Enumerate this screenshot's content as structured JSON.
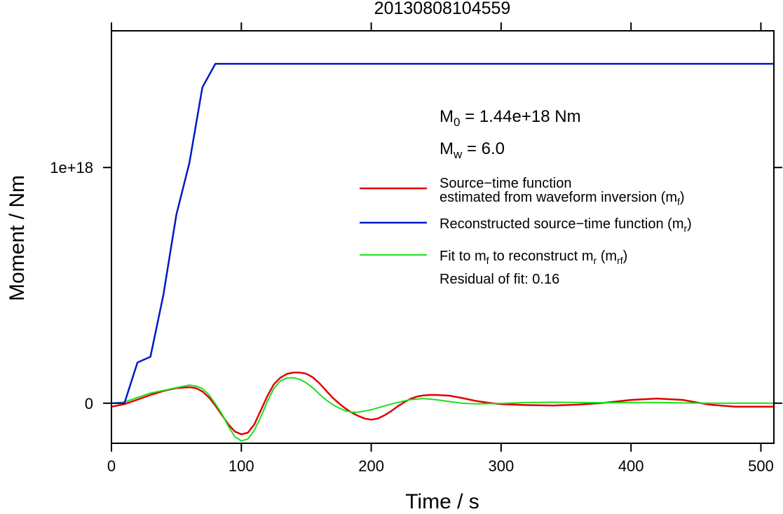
{
  "chart_data": {
    "type": "line",
    "title": "20130808104559",
    "xlabel": "Time / s",
    "ylabel": "Moment / Nm",
    "xlim": [
      0,
      510
    ],
    "ylim": [
      -1.7e+17,
      1.58e+18
    ],
    "xticks": [
      0,
      100,
      200,
      300,
      400,
      500
    ],
    "xtick_labels": [
      "0",
      "100",
      "200",
      "300",
      "400",
      "500"
    ],
    "yticks": [
      0,
      1e+18
    ],
    "ytick_labels": [
      "0",
      "1e+18"
    ],
    "grid": false,
    "legend_position": "right",
    "annotations": {
      "m0": {
        "symbol": "M",
        "sub": "0",
        "text": " = 1.44e+18 Nm"
      },
      "mw": {
        "symbol": "M",
        "sub": "w",
        "text": " = 6.0"
      },
      "residual": "Residual of fit: 0.16"
    },
    "series": [
      {
        "key": "mf",
        "legend_lines": [
          "Source−time function",
          "estimated from waveform inversion (m",
          "f",
          ")"
        ],
        "color": "#e00000",
        "width": 2.5,
        "x": [
          0,
          10,
          20,
          30,
          40,
          50,
          60,
          65,
          70,
          75,
          80,
          85,
          90,
          95,
          100,
          105,
          110,
          115,
          120,
          125,
          130,
          135,
          140,
          145,
          150,
          155,
          160,
          165,
          170,
          175,
          180,
          185,
          190,
          195,
          200,
          205,
          210,
          215,
          220,
          225,
          230,
          235,
          240,
          245,
          250,
          260,
          270,
          280,
          290,
          300,
          320,
          340,
          360,
          380,
          400,
          420,
          440,
          460,
          480,
          500,
          510
        ],
        "y": [
          -1.5e+16,
          -4000000000000000.0,
          1.5e+16,
          3.5e+16,
          5.2e+16,
          6.4e+16,
          6.8e+16,
          6.4e+16,
          5e+16,
          2.5e+16,
          -1e+16,
          -5e+16,
          -9e+16,
          -1.2e+17,
          -1.32e+17,
          -1.25e+17,
          -9e+16,
          -3e+16,
          3e+16,
          8e+16,
          1.08e+17,
          1.24e+17,
          1.3e+17,
          1.3e+17,
          1.25e+17,
          1.1e+17,
          8.5e+16,
          5.5e+16,
          2.5e+16,
          0,
          -2.2e+16,
          -4e+16,
          -5.4e+16,
          -6.5e+16,
          -7e+16,
          -6.5e+16,
          -5.2e+16,
          -3.5e+16,
          -1.5e+16,
          3000000000000000.0,
          1.8e+16,
          2.8e+16,
          3.3e+16,
          3.5e+16,
          3.5e+16,
          3.2e+16,
          2.2e+16,
          1e+16,
          2000000000000000.0,
          -4000000000000000.0,
          -8000000000000000.0,
          -1e+16,
          -6000000000000000.0,
          2000000000000000.0,
          1.4e+16,
          2e+16,
          1.4e+16,
          -6000000000000000.0,
          -1.5e+16,
          -1.5e+16,
          -1.5e+16
        ]
      },
      {
        "key": "mr",
        "legend_lines": [
          "Reconstructed source−time function (m",
          "r",
          ")"
        ],
        "color": "#0019c8",
        "width": 2.5,
        "x": [
          0,
          10,
          20,
          30,
          40,
          50,
          60,
          70,
          80,
          90,
          100,
          200,
          300,
          400,
          510
        ],
        "y": [
          0,
          0,
          1.73e+17,
          1.97e+17,
          4.6e+17,
          8e+17,
          1.02e+18,
          1.34e+18,
          1.44e+18,
          1.44e+18,
          1.44e+18,
          1.44e+18,
          1.44e+18,
          1.44e+18,
          1.44e+18
        ]
      },
      {
        "key": "mrf",
        "legend_lines": [
          "Fit to m",
          "f",
          " to reconstruct m",
          "r",
          " (m",
          "rf",
          ")"
        ],
        "color": "#1ae01a",
        "width": 2,
        "x": [
          0,
          10,
          20,
          30,
          40,
          50,
          60,
          65,
          70,
          75,
          80,
          85,
          90,
          95,
          100,
          105,
          110,
          115,
          120,
          125,
          130,
          135,
          140,
          145,
          150,
          155,
          160,
          165,
          170,
          175,
          180,
          185,
          190,
          200,
          210,
          220,
          230,
          240,
          250,
          260,
          270,
          280,
          300,
          320,
          340,
          360,
          380,
          400,
          420,
          440,
          460,
          480,
          500,
          510
        ],
        "y": [
          0,
          5000000000000000.0,
          2.4e+16,
          4.3e+16,
          5.4e+16,
          6.6e+16,
          7.7e+16,
          7.3e+16,
          6.2e+16,
          3.6e+16,
          -2000000000000000.0,
          -4.5e+16,
          -9.8e+16,
          -1.42e+17,
          -1.6e+17,
          -1.52e+17,
          -1.15e+17,
          -5.8e+16,
          7000000000000000.0,
          6.2e+16,
          9.4e+16,
          1.07e+17,
          1.08e+17,
          1.01e+17,
          8.6e+16,
          6.5e+16,
          3.9e+16,
          1.5e+16,
          -5000000000000000.0,
          -2e+16,
          -3.2e+16,
          -3.8e+16,
          -3.8e+16,
          -2.8e+16,
          -1.2e+16,
          3000000000000000.0,
          1.5e+16,
          2e+16,
          1.5e+16,
          7000000000000000.0,
          0,
          -3000000000000000.0,
          -1000000000000000.0,
          3000000000000000.0,
          4000000000000000.0,
          3000000000000000.0,
          2000000000000000.0,
          3000000000000000.0,
          3000000000000000.0,
          1000000000000000.0,
          0,
          0,
          0,
          0
        ]
      }
    ]
  }
}
